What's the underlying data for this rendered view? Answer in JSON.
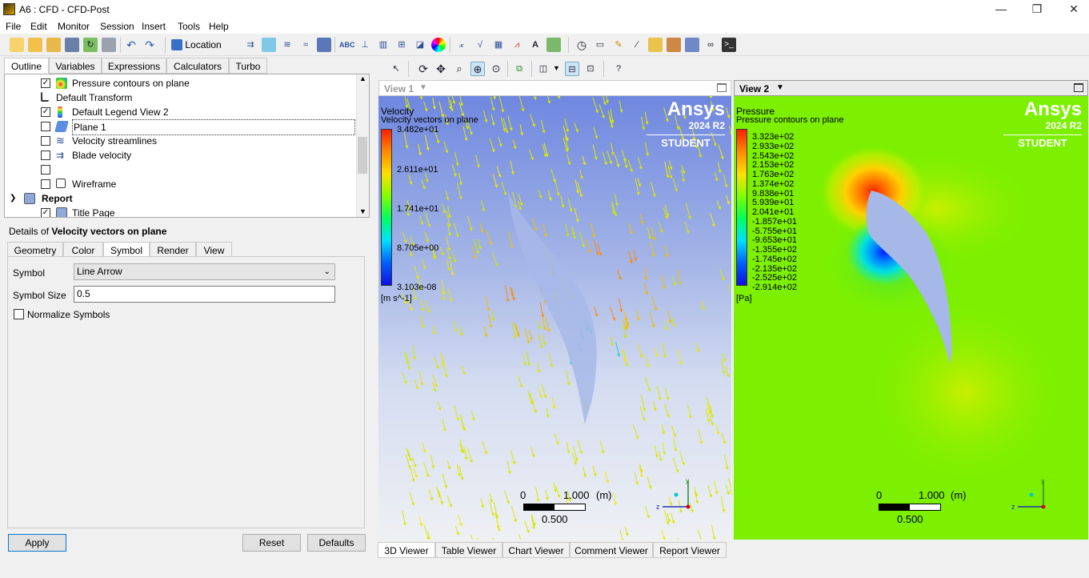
{
  "window": {
    "title": "A6 : CFD - CFD-Post",
    "minimize": "—",
    "maximize": "❐",
    "close": "✕"
  },
  "menu": [
    "File",
    "Edit",
    "Monitor",
    "Session",
    "Insert",
    "Tools",
    "Help"
  ],
  "toolbar": {
    "location_label": "Location"
  },
  "left_tabs": [
    "Outline",
    "Variables",
    "Expressions",
    "Calculators",
    "Turbo"
  ],
  "tree": [
    {
      "label": "Pressure contours on plane",
      "checked": true,
      "icon": "contour-icon"
    },
    {
      "label": "Default Transform",
      "checked": null,
      "icon": ""
    },
    {
      "label": "Default Legend View 2",
      "checked": true,
      "icon": "legend-icon"
    },
    {
      "label": "Plane 1",
      "checked": false,
      "icon": "plane-icon"
    },
    {
      "label": "Velocity streamlines",
      "checked": false,
      "icon": "streamline-icon"
    },
    {
      "label": "Blade velocity",
      "checked": false,
      "icon": "vector-icon"
    },
    {
      "label": "Velocity vectors on plane",
      "checked": false,
      "icon": "vector-icon",
      "selected": true
    },
    {
      "label": "Wireframe",
      "checked": false,
      "icon": "wireframe-icon"
    },
    {
      "label": "Report",
      "checked": null,
      "icon": "report-icon",
      "group": true
    },
    {
      "label": "Title Page",
      "checked": true,
      "icon": "title-page-icon"
    }
  ],
  "details": {
    "prefix": "Details of ",
    "object": "Velocity vectors on plane",
    "tabs": [
      "Geometry",
      "Color",
      "Symbol",
      "Render",
      "View"
    ],
    "symbol_label": "Symbol",
    "symbol_value": "Line Arrow",
    "symbol_size_label": "Symbol Size",
    "symbol_size_value": "0.5",
    "normalize_label": "Normalize Symbols",
    "apply": "Apply",
    "reset": "Reset",
    "defaults": "Defaults"
  },
  "view1": {
    "header": "View 1",
    "legend_title": "Velocity",
    "legend_subtitle": "Velocity vectors on plane",
    "legend_values": [
      "3.482e+01",
      "2.611e+01",
      "1.741e+01",
      "8.705e+00",
      "3.103e-08"
    ],
    "legend_unit": "[m s^-1]",
    "scale": {
      "left": "0",
      "right": "1.000",
      "unit": "(m)",
      "mid": "0.500"
    }
  },
  "view2": {
    "header": "View 2",
    "legend_title": "Pressure",
    "legend_subtitle": "Pressure contours on plane",
    "legend_values": [
      "3.323e+02",
      "2.933e+02",
      "2.543e+02",
      "2.153e+02",
      "1.763e+02",
      "1.374e+02",
      "9.838e+01",
      "5.939e+01",
      "2.041e+01",
      "-1.857e+01",
      "-5.755e+01",
      "-9.653e+01",
      "-1.355e+02",
      "-1.745e+02",
      "-2.135e+02",
      "-2.525e+02",
      "-2.914e+02"
    ],
    "legend_unit": "[Pa]",
    "scale": {
      "left": "0",
      "right": "1.000",
      "unit": "(m)",
      "mid": "0.500"
    }
  },
  "brand": {
    "name": "Ansys",
    "version": "2024 R2",
    "edition": "STUDENT"
  },
  "axes": {
    "y": "y",
    "z": "z"
  },
  "bottom_tabs": [
    "3D Viewer",
    "Table Viewer",
    "Chart Viewer",
    "Comment Viewer",
    "Report Viewer"
  ]
}
